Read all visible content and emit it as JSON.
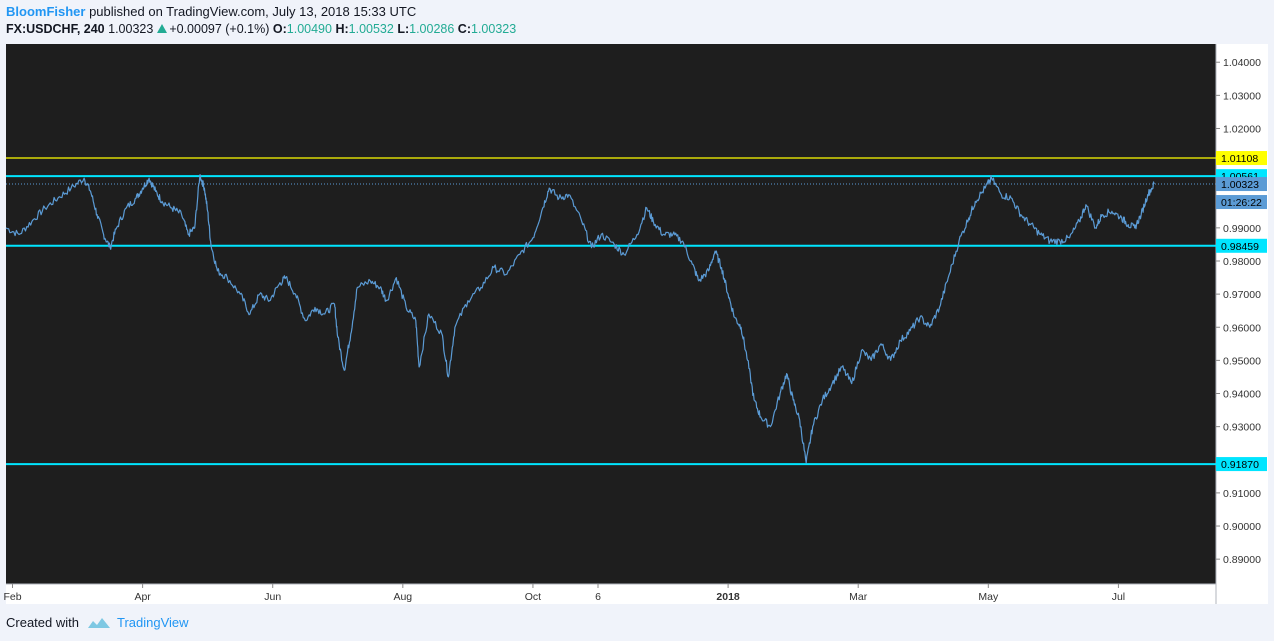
{
  "header": {
    "author": "BloomFisher",
    "published": " published on TradingView.com, July 13, 2018 15:33 UTC",
    "symbol": "FX:USDCHF, 240",
    "last": "1.00323",
    "change": "+0.00097 (+0.1%)",
    "o_label": "O:",
    "o_value": "1.00490",
    "h_label": "H:",
    "h_value": "1.00532",
    "l_label": "L:",
    "l_value": "1.00286",
    "c_label": "C:",
    "c_value": "1.00323"
  },
  "footer": {
    "created_with": "Created with",
    "brand": "TradingView"
  },
  "colors": {
    "background": "#1e1e1e",
    "line": "#5b9bd5",
    "support_resistance": "#00e5ff",
    "yellow_line": "#ffff00",
    "axis_text": "#333333"
  },
  "chart_data": {
    "type": "line",
    "ylim": [
      0.8825,
      1.0455
    ],
    "yticks": [
      "1.04000",
      "1.03000",
      "1.02000",
      "0.99000",
      "0.98000",
      "0.97000",
      "0.96000",
      "0.95000",
      "0.94000",
      "0.93000",
      "0.91000",
      "0.90000",
      "0.89000"
    ],
    "xticks": [
      {
        "label": "Feb",
        "t": 0.8,
        "bold": false
      },
      {
        "label": "Apr",
        "t": 2.8,
        "bold": false
      },
      {
        "label": "Jun",
        "t": 4.8,
        "bold": false
      },
      {
        "label": "Aug",
        "t": 6.8,
        "bold": false
      },
      {
        "label": "Oct",
        "t": 8.8,
        "bold": false
      },
      {
        "label": "6",
        "t": 9.8,
        "bold": false
      },
      {
        "label": "2018",
        "t": 11.8,
        "bold": true
      },
      {
        "label": "Mar",
        "t": 13.8,
        "bold": false
      },
      {
        "label": "May",
        "t": 15.8,
        "bold": false
      },
      {
        "label": "Jul",
        "t": 17.8,
        "bold": false
      }
    ],
    "tmin": 0.7,
    "tmax": 19.3,
    "series": [
      {
        "values": [
          [
            0.7,
            0.99
          ],
          [
            0.9,
            0.988
          ],
          [
            1.1,
            0.992
          ],
          [
            1.3,
            0.996
          ],
          [
            1.5,
            0.999
          ],
          [
            1.7,
            1.002
          ],
          [
            1.9,
            1.005
          ],
          [
            2.0,
            1.001
          ],
          [
            2.1,
            0.994
          ],
          [
            2.2,
            0.988
          ],
          [
            2.3,
            0.984
          ],
          [
            2.4,
            0.99
          ],
          [
            2.55,
            0.996
          ],
          [
            2.7,
            0.999
          ],
          [
            2.8,
            1.002
          ],
          [
            2.9,
            1.005
          ],
          [
            3.0,
            1.001
          ],
          [
            3.1,
            0.998
          ],
          [
            3.25,
            0.996
          ],
          [
            3.4,
            0.994
          ],
          [
            3.5,
            0.988
          ],
          [
            3.6,
            0.99
          ],
          [
            3.68,
            1.006
          ],
          [
            3.75,
            1.002
          ],
          [
            3.8,
            0.995
          ],
          [
            3.85,
            0.985
          ],
          [
            3.95,
            0.977
          ],
          [
            4.1,
            0.975
          ],
          [
            4.3,
            0.97
          ],
          [
            4.45,
            0.964
          ],
          [
            4.6,
            0.97
          ],
          [
            4.75,
            0.968
          ],
          [
            4.9,
            0.973
          ],
          [
            5.0,
            0.975
          ],
          [
            5.15,
            0.97
          ],
          [
            5.3,
            0.962
          ],
          [
            5.45,
            0.966
          ],
          [
            5.6,
            0.964
          ],
          [
            5.75,
            0.967
          ],
          [
            5.8,
            0.957
          ],
          [
            5.9,
            0.947
          ],
          [
            6.0,
            0.958
          ],
          [
            6.1,
            0.972
          ],
          [
            6.3,
            0.974
          ],
          [
            6.45,
            0.972
          ],
          [
            6.55,
            0.968
          ],
          [
            6.7,
            0.975
          ],
          [
            6.85,
            0.966
          ],
          [
            7.0,
            0.962
          ],
          [
            7.05,
            0.948
          ],
          [
            7.2,
            0.964
          ],
          [
            7.4,
            0.958
          ],
          [
            7.5,
            0.945
          ],
          [
            7.6,
            0.96
          ],
          [
            7.8,
            0.968
          ],
          [
            8.0,
            0.972
          ],
          [
            8.2,
            0.978
          ],
          [
            8.4,
            0.976
          ],
          [
            8.6,
            0.982
          ],
          [
            8.8,
            0.987
          ],
          [
            8.95,
            0.996
          ],
          [
            9.05,
            1.002
          ],
          [
            9.2,
            0.999
          ],
          [
            9.35,
            1.0
          ],
          [
            9.55,
            0.992
          ],
          [
            9.7,
            0.984
          ],
          [
            9.85,
            0.988
          ],
          [
            10.05,
            0.985
          ],
          [
            10.2,
            0.982
          ],
          [
            10.4,
            0.988
          ],
          [
            10.55,
            0.996
          ],
          [
            10.65,
            0.992
          ],
          [
            10.8,
            0.988
          ],
          [
            10.95,
            0.988
          ],
          [
            11.1,
            0.986
          ],
          [
            11.25,
            0.979
          ],
          [
            11.35,
            0.974
          ],
          [
            11.5,
            0.977
          ],
          [
            11.6,
            0.983
          ],
          [
            11.7,
            0.978
          ],
          [
            11.8,
            0.97
          ],
          [
            11.9,
            0.963
          ],
          [
            12.0,
            0.96
          ],
          [
            12.1,
            0.95
          ],
          [
            12.2,
            0.938
          ],
          [
            12.3,
            0.933
          ],
          [
            12.45,
            0.93
          ],
          [
            12.6,
            0.94
          ],
          [
            12.7,
            0.946
          ],
          [
            12.8,
            0.938
          ],
          [
            12.9,
            0.932
          ],
          [
            13.0,
            0.919
          ],
          [
            13.1,
            0.93
          ],
          [
            13.25,
            0.938
          ],
          [
            13.4,
            0.943
          ],
          [
            13.55,
            0.948
          ],
          [
            13.7,
            0.943
          ],
          [
            13.85,
            0.953
          ],
          [
            14.0,
            0.95
          ],
          [
            14.15,
            0.955
          ],
          [
            14.3,
            0.95
          ],
          [
            14.45,
            0.956
          ],
          [
            14.6,
            0.959
          ],
          [
            14.75,
            0.963
          ],
          [
            14.9,
            0.96
          ],
          [
            15.05,
            0.966
          ],
          [
            15.2,
            0.976
          ],
          [
            15.35,
            0.986
          ],
          [
            15.5,
            0.993
          ],
          [
            15.6,
            0.998
          ],
          [
            15.75,
            1.002
          ],
          [
            15.85,
            1.005
          ],
          [
            16.0,
            1.0
          ],
          [
            16.15,
            0.999
          ],
          [
            16.3,
            0.994
          ],
          [
            16.45,
            0.991
          ],
          [
            16.6,
            0.988
          ],
          [
            16.75,
            0.986
          ],
          [
            16.9,
            0.986
          ],
          [
            17.05,
            0.987
          ],
          [
            17.2,
            0.992
          ],
          [
            17.3,
            0.997
          ],
          [
            17.45,
            0.99
          ],
          [
            17.55,
            0.994
          ],
          [
            17.7,
            0.995
          ],
          [
            17.85,
            0.993
          ],
          [
            17.95,
            0.991
          ],
          [
            18.05,
            0.99
          ],
          [
            18.15,
            0.994
          ],
          [
            18.25,
            1.0
          ],
          [
            18.35,
            1.0032
          ]
        ]
      }
    ],
    "hlines": [
      {
        "value": 1.01108,
        "label": "1.01108",
        "color": "#ffff00"
      },
      {
        "value": 1.00561,
        "label": "1.00561",
        "color": "#00e5ff"
      },
      {
        "value": 0.98459,
        "label": "0.98459",
        "color": "#00e5ff"
      },
      {
        "value": 0.9187,
        "label": "0.91870",
        "color": "#00e5ff"
      }
    ],
    "last_price": {
      "value": 1.00323,
      "label": "1.00323",
      "countdown": "01:26:22"
    }
  }
}
